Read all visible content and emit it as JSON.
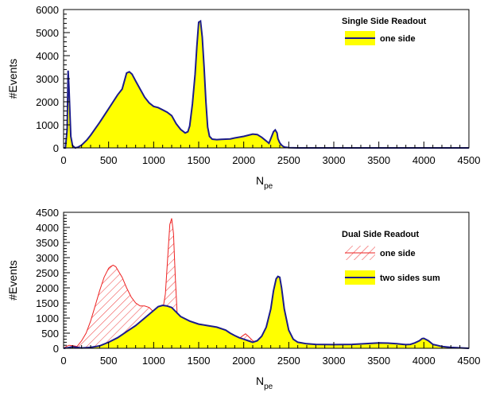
{
  "colors": {
    "fill_yellow": "#ffff00",
    "line_navy": "#1c1c8c",
    "line_red": "#ee2222",
    "hatch_red": "#ee2222",
    "axis": "#000000"
  },
  "chart_data": [
    {
      "type": "area",
      "title": "",
      "xlabel_main": "N",
      "xlabel_sub": "pe",
      "ylabel": "#Events",
      "xlim": [
        0,
        4500
      ],
      "ylim": [
        0,
        6000
      ],
      "xticks": [
        0,
        500,
        1000,
        1500,
        2000,
        2500,
        3000,
        3500,
        4000,
        4500
      ],
      "xtick_labels": [
        "0",
        "500",
        "1000",
        "1500",
        "2000",
        "2500",
        "3000",
        "3500",
        "4000",
        "4500"
      ],
      "yticks": [
        0,
        1000,
        2000,
        3000,
        4000,
        5000,
        6000
      ],
      "ytick_labels": [
        "0",
        "1000",
        "2000",
        "3000",
        "4000",
        "5000",
        "6000"
      ],
      "legend": {
        "title": "Single Side Readout",
        "position": "top-right"
      },
      "series": [
        {
          "name": "one side",
          "style": "yellow-fill-navy-line",
          "x": [
            0,
            20,
            40,
            50,
            60,
            80,
            100,
            130,
            160,
            200,
            260,
            300,
            400,
            500,
            600,
            650,
            700,
            730,
            760,
            800,
            850,
            900,
            950,
            1000,
            1050,
            1100,
            1150,
            1200,
            1250,
            1300,
            1350,
            1380,
            1400,
            1430,
            1460,
            1480,
            1500,
            1520,
            1540,
            1560,
            1580,
            1600,
            1620,
            1650,
            1700,
            1750,
            1800,
            1850,
            1900,
            2000,
            2100,
            2150,
            2200,
            2250,
            2280,
            2300,
            2330,
            2350,
            2370,
            2380,
            2400,
            2420,
            2440,
            2460,
            2480,
            2500,
            2550,
            2600,
            3000,
            3500,
            4000,
            4500
          ],
          "values": [
            0,
            0,
            800,
            3350,
            2600,
            500,
            100,
            0,
            30,
            120,
            350,
            550,
            1100,
            1700,
            2300,
            2550,
            3250,
            3300,
            3200,
            2900,
            2550,
            2200,
            1950,
            1800,
            1750,
            1650,
            1550,
            1400,
            1050,
            800,
            650,
            700,
            950,
            1900,
            3200,
            4400,
            5450,
            5500,
            4800,
            3500,
            2000,
            900,
            500,
            380,
            360,
            370,
            380,
            390,
            430,
            500,
            600,
            580,
            460,
            300,
            200,
            400,
            700,
            780,
            650,
            400,
            220,
            120,
            60,
            30,
            20,
            10,
            5,
            0,
            0,
            0,
            0,
            0
          ]
        }
      ]
    },
    {
      "type": "area",
      "title": "",
      "xlabel_main": "N",
      "xlabel_sub": "pe",
      "ylabel": "#Events",
      "xlim": [
        0,
        4500
      ],
      "ylim": [
        0,
        4500
      ],
      "xticks": [
        0,
        500,
        1000,
        1500,
        2000,
        2500,
        3000,
        3500,
        4000,
        4500
      ],
      "xtick_labels": [
        "0",
        "500",
        "1000",
        "1500",
        "2000",
        "2500",
        "3000",
        "3500",
        "4000",
        "4500"
      ],
      "yticks": [
        0,
        500,
        1000,
        1500,
        2000,
        2500,
        3000,
        3500,
        4000,
        4500
      ],
      "ytick_labels": [
        "0",
        "500",
        "1000",
        "1500",
        "2000",
        "2500",
        "3000",
        "3500",
        "4000",
        "4500"
      ],
      "legend": {
        "title": "Dual Side Readout",
        "position": "top-right"
      },
      "series": [
        {
          "name": "one side",
          "style": "red-hatch-red-line",
          "x": [
            0,
            30,
            60,
            100,
            150,
            200,
            250,
            300,
            350,
            400,
            450,
            500,
            520,
            550,
            580,
            600,
            650,
            700,
            750,
            800,
            850,
            900,
            950,
            1000,
            1050,
            1100,
            1130,
            1160,
            1180,
            1200,
            1220,
            1240,
            1260,
            1280,
            1300,
            1350,
            1400,
            1450,
            1500,
            1600,
            1700,
            1800,
            1850,
            1900,
            1950,
            2000,
            2020,
            2050,
            2100,
            2200,
            2300,
            2400,
            2600,
            3000,
            3500,
            4000,
            4500
          ],
          "values": [
            0,
            60,
            100,
            90,
            60,
            250,
            500,
            900,
            1400,
            1900,
            2350,
            2650,
            2700,
            2750,
            2700,
            2600,
            2350,
            2000,
            1700,
            1500,
            1400,
            1400,
            1350,
            1200,
            1100,
            1250,
            1800,
            3200,
            4100,
            4300,
            3800,
            2400,
            1200,
            700,
            550,
            480,
            380,
            330,
            310,
            290,
            300,
            320,
            300,
            280,
            330,
            440,
            480,
            400,
            250,
            100,
            50,
            30,
            10,
            0,
            0,
            0,
            0
          ]
        },
        {
          "name": "two sides sum",
          "style": "yellow-fill-navy-line",
          "x": [
            0,
            50,
            100,
            150,
            200,
            300,
            400,
            500,
            600,
            700,
            800,
            900,
            1000,
            1050,
            1100,
            1150,
            1200,
            1250,
            1300,
            1400,
            1500,
            1600,
            1700,
            1800,
            1850,
            1900,
            1950,
            2000,
            2050,
            2100,
            2150,
            2200,
            2250,
            2300,
            2330,
            2360,
            2380,
            2400,
            2420,
            2450,
            2500,
            2550,
            2600,
            2700,
            2800,
            3000,
            3200,
            3400,
            3500,
            3600,
            3700,
            3800,
            3850,
            3900,
            3950,
            3980,
            4000,
            4050,
            4100,
            4200,
            4300,
            4500
          ],
          "values": [
            0,
            20,
            50,
            30,
            10,
            30,
            80,
            200,
            350,
            550,
            750,
            1000,
            1250,
            1380,
            1420,
            1400,
            1350,
            1200,
            1050,
            900,
            800,
            750,
            700,
            600,
            500,
            420,
            350,
            300,
            250,
            200,
            250,
            400,
            700,
            1300,
            1900,
            2300,
            2380,
            2350,
            2000,
            1300,
            600,
            300,
            200,
            150,
            130,
            120,
            130,
            160,
            180,
            170,
            150,
            120,
            130,
            180,
            250,
            320,
            330,
            250,
            130,
            60,
            30,
            0
          ]
        }
      ]
    }
  ]
}
